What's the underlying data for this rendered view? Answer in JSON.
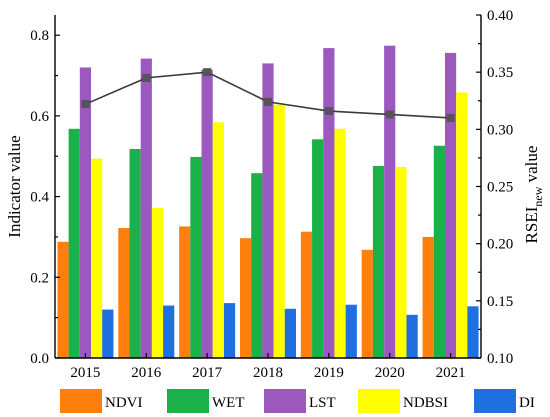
{
  "chart_data": {
    "type": "bar",
    "categories": [
      "2015",
      "2016",
      "2017",
      "2018",
      "2019",
      "2020",
      "2021"
    ],
    "y_left": {
      "label": "Indicator value",
      "ylim": [
        0.0,
        0.85
      ],
      "ticks": [
        "0.0",
        "0.2",
        "0.4",
        "0.6",
        "0.8"
      ]
    },
    "y_right": {
      "label_main": "RSEI",
      "label_sub": "new",
      "label_tail": " value",
      "ylim": [
        0.1,
        0.4
      ],
      "ticks": [
        "0.10",
        "0.15",
        "0.20",
        "0.25",
        "0.30",
        "0.35",
        "0.40"
      ]
    },
    "series": [
      {
        "name": "NDVI",
        "color": "#ff7f0e",
        "values": [
          0.288,
          0.322,
          0.326,
          0.297,
          0.313,
          0.268,
          0.3
        ]
      },
      {
        "name": "WET",
        "color": "#1ab14a",
        "values": [
          0.568,
          0.518,
          0.498,
          0.458,
          0.542,
          0.476,
          0.526
        ]
      },
      {
        "name": "LST",
        "color": "#9b59c0",
        "values": [
          0.72,
          0.742,
          0.715,
          0.73,
          0.768,
          0.774,
          0.756
        ]
      },
      {
        "name": "NDBSI",
        "color": "#ffff00",
        "values": [
          0.494,
          0.372,
          0.584,
          0.628,
          0.568,
          0.473,
          0.658
        ]
      },
      {
        "name": "DI",
        "color": "#1f6fe0",
        "values": [
          0.12,
          0.13,
          0.136,
          0.122,
          0.132,
          0.107,
          0.128
        ]
      }
    ],
    "line_series": {
      "axis": "right",
      "color": "#3a3a3a",
      "marker": "square",
      "values": [
        0.322,
        0.345,
        0.35,
        0.324,
        0.316,
        0.313,
        0.31
      ]
    },
    "legend_position": "bottom",
    "grid": false
  }
}
